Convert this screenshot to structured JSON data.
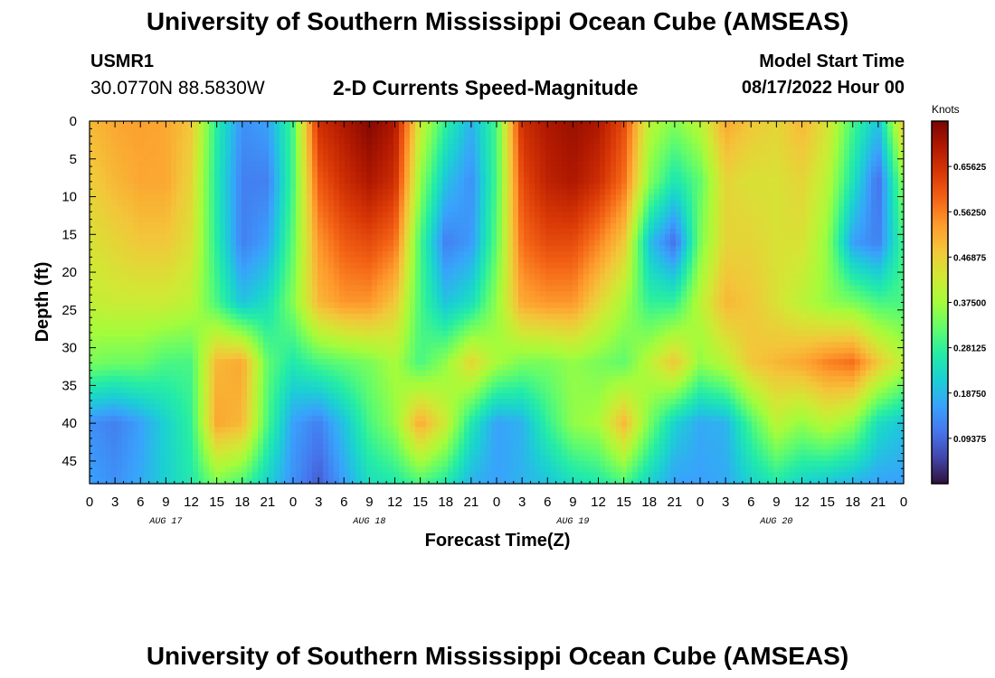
{
  "header": {
    "title": "University of Southern Mississippi Ocean Cube (AMSEAS)",
    "station": "USMR1",
    "coords": "30.0770N  88.5830W",
    "subtitle": "2-D Currents Speed-Magnitude",
    "model_start_label": "Model Start Time",
    "model_start_value": "08/17/2022 Hour 00",
    "footer_title": "University of Southern Mississippi Ocean Cube (AMSEAS)"
  },
  "colors": {
    "colormap": [
      "#30123b",
      "#4145ab",
      "#4675ed",
      "#39a2fc",
      "#1bcfd4",
      "#24eca6",
      "#61fc6c",
      "#a4fc3b",
      "#d1e834",
      "#f3c63a",
      "#fe9b2d",
      "#f36315",
      "#d93806",
      "#b11901",
      "#7a0402"
    ]
  },
  "chart_data": {
    "type": "heatmap",
    "title": "2-D Currents Speed-Magnitude",
    "xlabel": "Forecast Time(Z)",
    "ylabel": "Depth (ft)",
    "x_ticks": [
      "0",
      "3",
      "6",
      "9",
      "12",
      "15",
      "18",
      "21",
      "0",
      "3",
      "6",
      "9",
      "12",
      "15",
      "18",
      "21",
      "0",
      "3",
      "6",
      "9",
      "12",
      "15",
      "18",
      "21",
      "0",
      "3",
      "6",
      "9",
      "12",
      "15",
      "18",
      "21",
      "0"
    ],
    "date_labels": [
      {
        "hour": 9,
        "text": "AUG 17"
      },
      {
        "hour": 33,
        "text": "AUG 18"
      },
      {
        "hour": 57,
        "text": "AUG 19"
      },
      {
        "hour": 81,
        "text": "AUG 20"
      }
    ],
    "x_range_hours": [
      0,
      96
    ],
    "y_ticks": [
      0,
      5,
      10,
      15,
      20,
      25,
      30,
      35,
      40,
      45
    ],
    "y_range_ft": [
      0,
      48
    ],
    "colorbar": {
      "unit": "Knots",
      "range": [
        0,
        0.75
      ],
      "ticks": [
        {
          "v": 0.65625,
          "label": "0.65625"
        },
        {
          "v": 0.5625,
          "label": "0.56250"
        },
        {
          "v": 0.46875,
          "label": "0.46875"
        },
        {
          "v": 0.375,
          "label": "0.37500"
        },
        {
          "v": 0.28125,
          "label": "0.28125"
        },
        {
          "v": 0.1875,
          "label": "0.18750"
        },
        {
          "v": 0.09375,
          "label": "0.09375"
        }
      ]
    },
    "field_knots": {
      "time_hours": [
        0,
        3,
        6,
        9,
        12,
        15,
        18,
        21,
        24,
        27,
        30,
        33,
        36,
        39,
        42,
        45,
        48,
        51,
        54,
        57,
        60,
        63,
        66,
        69,
        72,
        75,
        78,
        81,
        84,
        87,
        90,
        93,
        96
      ],
      "depth_ft": [
        0,
        8,
        16,
        24,
        32,
        40,
        48
      ],
      "values": [
        [
          0.5,
          0.52,
          0.53,
          0.52,
          0.48,
          0.27,
          0.14,
          0.16,
          0.3,
          0.66,
          0.7,
          0.74,
          0.7,
          0.42,
          0.28,
          0.18,
          0.3,
          0.66,
          0.7,
          0.72,
          0.7,
          0.62,
          0.4,
          0.35,
          0.4,
          0.52,
          0.48,
          0.46,
          0.5,
          0.44,
          0.3,
          0.2,
          0.48
        ],
        [
          0.47,
          0.5,
          0.52,
          0.52,
          0.46,
          0.26,
          0.12,
          0.12,
          0.3,
          0.6,
          0.66,
          0.7,
          0.66,
          0.36,
          0.2,
          0.14,
          0.3,
          0.62,
          0.68,
          0.7,
          0.66,
          0.58,
          0.35,
          0.25,
          0.32,
          0.46,
          0.44,
          0.44,
          0.46,
          0.4,
          0.25,
          0.1,
          0.36
        ],
        [
          0.44,
          0.46,
          0.48,
          0.48,
          0.44,
          0.27,
          0.12,
          0.16,
          0.32,
          0.54,
          0.6,
          0.62,
          0.58,
          0.3,
          0.12,
          0.15,
          0.32,
          0.58,
          0.62,
          0.62,
          0.56,
          0.48,
          0.2,
          0.1,
          0.34,
          0.46,
          0.46,
          0.44,
          0.44,
          0.36,
          0.16,
          0.12,
          0.3
        ],
        [
          0.41,
          0.42,
          0.42,
          0.42,
          0.4,
          0.3,
          0.2,
          0.24,
          0.35,
          0.5,
          0.54,
          0.54,
          0.48,
          0.3,
          0.2,
          0.24,
          0.36,
          0.52,
          0.54,
          0.54,
          0.46,
          0.38,
          0.28,
          0.28,
          0.4,
          0.5,
          0.48,
          0.44,
          0.4,
          0.36,
          0.34,
          0.3,
          0.3
        ],
        [
          0.34,
          0.33,
          0.33,
          0.3,
          0.3,
          0.5,
          0.52,
          0.32,
          0.26,
          0.3,
          0.32,
          0.34,
          0.38,
          0.3,
          0.36,
          0.46,
          0.38,
          0.34,
          0.34,
          0.36,
          0.34,
          0.32,
          0.4,
          0.48,
          0.36,
          0.4,
          0.48,
          0.5,
          0.52,
          0.56,
          0.58,
          0.48,
          0.4
        ],
        [
          0.14,
          0.12,
          0.16,
          0.22,
          0.28,
          0.52,
          0.5,
          0.3,
          0.16,
          0.12,
          0.2,
          0.3,
          0.36,
          0.52,
          0.42,
          0.26,
          0.16,
          0.18,
          0.28,
          0.36,
          0.38,
          0.5,
          0.34,
          0.22,
          0.17,
          0.18,
          0.3,
          0.4,
          0.36,
          0.4,
          0.36,
          0.24,
          0.2
        ],
        [
          0.16,
          0.14,
          0.17,
          0.22,
          0.26,
          0.34,
          0.3,
          0.22,
          0.14,
          0.08,
          0.16,
          0.24,
          0.26,
          0.3,
          0.26,
          0.18,
          0.16,
          0.18,
          0.2,
          0.24,
          0.26,
          0.3,
          0.22,
          0.16,
          0.16,
          0.17,
          0.22,
          0.26,
          0.22,
          0.2,
          0.18,
          0.16,
          0.16
        ]
      ]
    }
  }
}
